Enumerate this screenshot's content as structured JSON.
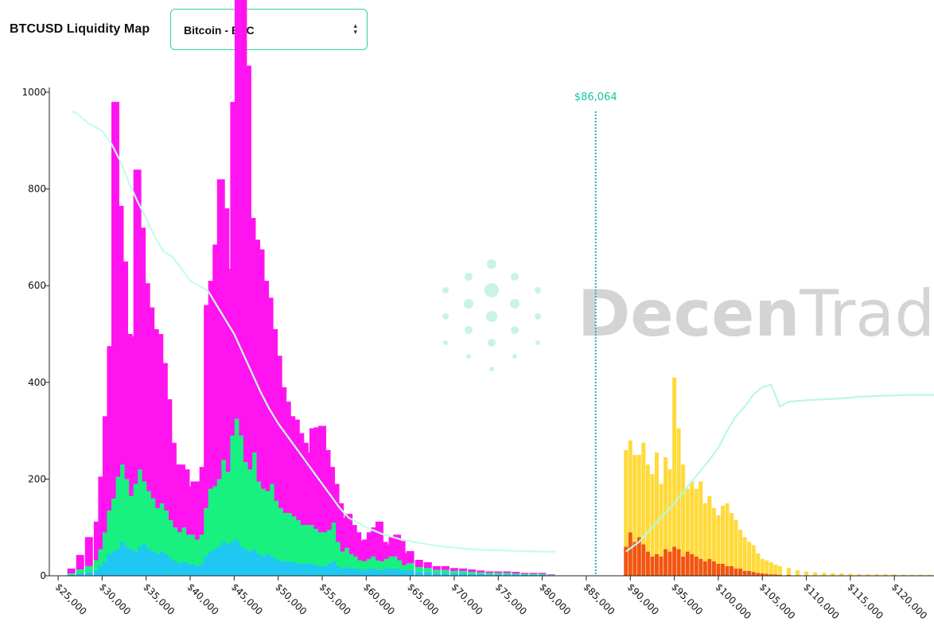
{
  "header": {
    "title": "BTCUSD Liquidity Map",
    "selector": {
      "value": "Bitcoin - BTC"
    }
  },
  "watermark": {
    "brand_light": "Trade",
    "brand_bold": "Decen"
  },
  "colors": {
    "long_layers": [
      "#1ec8f2",
      "#18f080",
      "#ff14f0"
    ],
    "short_layers": [
      "#f25510",
      "#ffda3a"
    ],
    "long_cumulative": "#c4fcec",
    "short_cumulative": "#b8f8e6",
    "current_price": "#19b3c9",
    "current_price_label": "#15c3a0",
    "watermark_dots": "#c8f3e8"
  },
  "chart_data": {
    "type": "bar",
    "title": "BTCUSD Liquidity Map",
    "current_price": 86064,
    "current_price_label": "$86,064",
    "ylim": [
      0,
      1000
    ],
    "xlim": [
      24000,
      124500
    ],
    "y_ticks": [
      "0",
      "200",
      "400",
      "600",
      "800",
      "1000"
    ],
    "x_ticks": [
      {
        "value": 25000,
        "label": "$25,000"
      },
      {
        "value": 30000,
        "label": "$30,000"
      },
      {
        "value": 35000,
        "label": "$35,000"
      },
      {
        "value": 40000,
        "label": "$40,000"
      },
      {
        "value": 45000,
        "label": "$45,000"
      },
      {
        "value": 50000,
        "label": "$50,000"
      },
      {
        "value": 55000,
        "label": "$55,000"
      },
      {
        "value": 60000,
        "label": "$60,000"
      },
      {
        "value": 65000,
        "label": "$65,000"
      },
      {
        "value": 70000,
        "label": "$70,000"
      },
      {
        "value": 75000,
        "label": "$75,000"
      },
      {
        "value": 80000,
        "label": "$80,000"
      },
      {
        "value": 85000,
        "label": "$85,000"
      },
      {
        "value": 90000,
        "label": "$90,000"
      },
      {
        "value": 95000,
        "label": "$95,000"
      },
      {
        "value": 100000,
        "label": "$100,000"
      },
      {
        "value": 105000,
        "label": "$105,000"
      },
      {
        "value": 110000,
        "label": "$110,000"
      },
      {
        "value": 115000,
        "label": "$115,000"
      },
      {
        "value": 120000,
        "label": "$120,000"
      }
    ],
    "long_liquidity": {
      "x": [
        26500,
        27500,
        28500,
        29500,
        30000,
        30500,
        31000,
        31500,
        32000,
        32500,
        33000,
        33500,
        34000,
        34500,
        35000,
        35500,
        36000,
        36500,
        37000,
        37500,
        38000,
        38500,
        39000,
        39500,
        40000,
        40500,
        41000,
        41500,
        42000,
        42500,
        43000,
        43500,
        44000,
        44500,
        45000,
        45500,
        46000,
        46500,
        47000,
        47500,
        48000,
        48500,
        49000,
        49500,
        50000,
        50500,
        51000,
        51500,
        52000,
        52500,
        53000,
        53500,
        54000,
        54500,
        55000,
        55500,
        56000,
        56500,
        57000,
        57500,
        58000,
        58500,
        59000,
        59500,
        60000,
        60500,
        61000,
        61500,
        62000,
        62500,
        63000,
        63500,
        64000,
        64500,
        65000,
        66000,
        67000,
        68000,
        69000,
        70000,
        71000,
        72000,
        73000,
        74000,
        75000,
        76000,
        77000,
        78000,
        79000,
        80000,
        81000
      ],
      "series": [
        {
          "values": [
            2,
            5,
            8,
            12,
            20,
            30,
            45,
            50,
            55,
            70,
            60,
            55,
            50,
            60,
            65,
            55,
            50,
            45,
            50,
            45,
            35,
            30,
            25,
            30,
            25,
            25,
            20,
            25,
            40,
            50,
            55,
            60,
            70,
            65,
            70,
            75,
            60,
            55,
            50,
            55,
            45,
            40,
            45,
            40,
            35,
            30,
            30,
            30,
            28,
            25,
            25,
            25,
            25,
            22,
            20,
            20,
            25,
            30,
            20,
            15,
            18,
            15,
            15,
            12,
            12,
            15,
            15,
            12,
            12,
            15,
            15,
            15,
            12,
            10,
            12,
            8,
            8,
            6,
            6,
            5,
            5,
            4,
            4,
            3,
            3,
            3,
            3,
            2,
            2,
            2,
            1
          ]
        },
        {
          "values": [
            3,
            8,
            12,
            20,
            35,
            60,
            90,
            110,
            150,
            160,
            140,
            110,
            140,
            160,
            130,
            120,
            110,
            95,
            100,
            90,
            80,
            70,
            65,
            70,
            60,
            60,
            55,
            60,
            100,
            130,
            130,
            140,
            170,
            150,
            220,
            250,
            230,
            180,
            170,
            200,
            150,
            140,
            130,
            150,
            120,
            110,
            100,
            100,
            95,
            90,
            80,
            80,
            80,
            75,
            70,
            70,
            70,
            80,
            50,
            35,
            40,
            30,
            25,
            20,
            18,
            20,
            25,
            20,
            18,
            20,
            25,
            25,
            20,
            12,
            14,
            10,
            8,
            6,
            6,
            5,
            5,
            4,
            3,
            3,
            3,
            3,
            2,
            2,
            2,
            2,
            1
          ]
        },
        {
          "values": [
            10,
            30,
            60,
            80,
            150,
            240,
            340,
            820,
            560,
            420,
            300,
            330,
            650,
            500,
            410,
            380,
            350,
            360,
            290,
            230,
            160,
            130,
            140,
            120,
            100,
            110,
            120,
            140,
            420,
            430,
            500,
            620,
            520,
            420,
            690,
            900,
            950,
            820,
            520,
            440,
            480,
            430,
            400,
            320,
            300,
            250,
            230,
            200,
            200,
            180,
            170,
            150,
            200,
            210,
            220,
            170,
            130,
            80,
            80,
            70,
            70,
            60,
            50,
            40,
            45,
            55,
            60,
            80,
            40,
            30,
            40,
            45,
            40,
            25,
            25,
            15,
            12,
            8,
            8,
            6,
            5,
            5,
            4,
            3,
            3,
            3,
            3,
            2,
            2,
            2,
            1
          ]
        }
      ]
    },
    "short_liquidity": {
      "x": [
        89500,
        90000,
        90500,
        91000,
        91500,
        92000,
        92500,
        93000,
        93500,
        94000,
        94500,
        95000,
        95500,
        96000,
        96500,
        97000,
        97500,
        98000,
        98500,
        99000,
        99500,
        100000,
        100500,
        101000,
        101500,
        102000,
        102500,
        103000,
        103500,
        104000,
        104500,
        105000,
        105500,
        106000,
        106500,
        107000,
        108000,
        109000,
        110000,
        111000,
        112000,
        113000,
        114000,
        115000,
        116000,
        117000,
        118000,
        119000,
        120000,
        121000,
        122000,
        123000,
        124000
      ],
      "series": [
        {
          "values": [
            60,
            90,
            70,
            80,
            65,
            50,
            40,
            45,
            40,
            55,
            50,
            60,
            55,
            40,
            50,
            45,
            40,
            35,
            30,
            35,
            30,
            25,
            25,
            20,
            20,
            15,
            15,
            10,
            10,
            8,
            6,
            5,
            4,
            3,
            3,
            2,
            2,
            1,
            1,
            1,
            0,
            0,
            0,
            0,
            0,
            0,
            0,
            0,
            0,
            0,
            0,
            0,
            0
          ]
        },
        {
          "values": [
            200,
            190,
            180,
            170,
            210,
            180,
            170,
            210,
            150,
            190,
            170,
            350,
            250,
            190,
            130,
            150,
            140,
            160,
            120,
            130,
            110,
            100,
            120,
            130,
            110,
            100,
            80,
            70,
            60,
            55,
            40,
            30,
            28,
            25,
            20,
            18,
            14,
            10,
            8,
            6,
            6,
            5,
            5,
            4,
            3,
            3,
            3,
            3,
            3,
            2,
            2,
            2,
            2
          ]
        }
      ]
    },
    "long_cumulative_curve": {
      "x": [
        26500,
        27000,
        28500,
        30000,
        31000,
        32000,
        33000,
        34000,
        35000,
        36000,
        37000,
        38000,
        39000,
        40000,
        41000,
        42000,
        43000,
        44000,
        45000,
        46000,
        47000,
        48000,
        49000,
        50000,
        51000,
        52000,
        53000,
        54000,
        55000,
        56000,
        57000,
        58000,
        60000,
        62000,
        64000,
        66000,
        68000,
        70000,
        72000,
        74000,
        76000,
        78000,
        80000,
        81500
      ],
      "y": [
        960,
        958,
        935,
        920,
        895,
        860,
        815,
        775,
        740,
        700,
        670,
        660,
        635,
        610,
        600,
        590,
        560,
        530,
        500,
        460,
        420,
        380,
        345,
        315,
        290,
        265,
        240,
        215,
        190,
        165,
        140,
        120,
        100,
        85,
        75,
        68,
        62,
        58,
        55,
        53,
        52,
        51,
        50,
        50
      ]
    },
    "short_cumulative_curve": {
      "x": [
        89500,
        91000,
        93000,
        95000,
        97000,
        99000,
        100000,
        101000,
        102000,
        103000,
        104000,
        105000,
        106000,
        107000,
        108000,
        110000,
        112000,
        114000,
        116000,
        118000,
        120000,
        122000,
        124500
      ],
      "y": [
        50,
        70,
        110,
        150,
        195,
        240,
        265,
        300,
        330,
        350,
        375,
        390,
        395,
        350,
        360,
        363,
        365,
        367,
        370,
        372,
        373,
        374,
        374
      ]
    }
  }
}
